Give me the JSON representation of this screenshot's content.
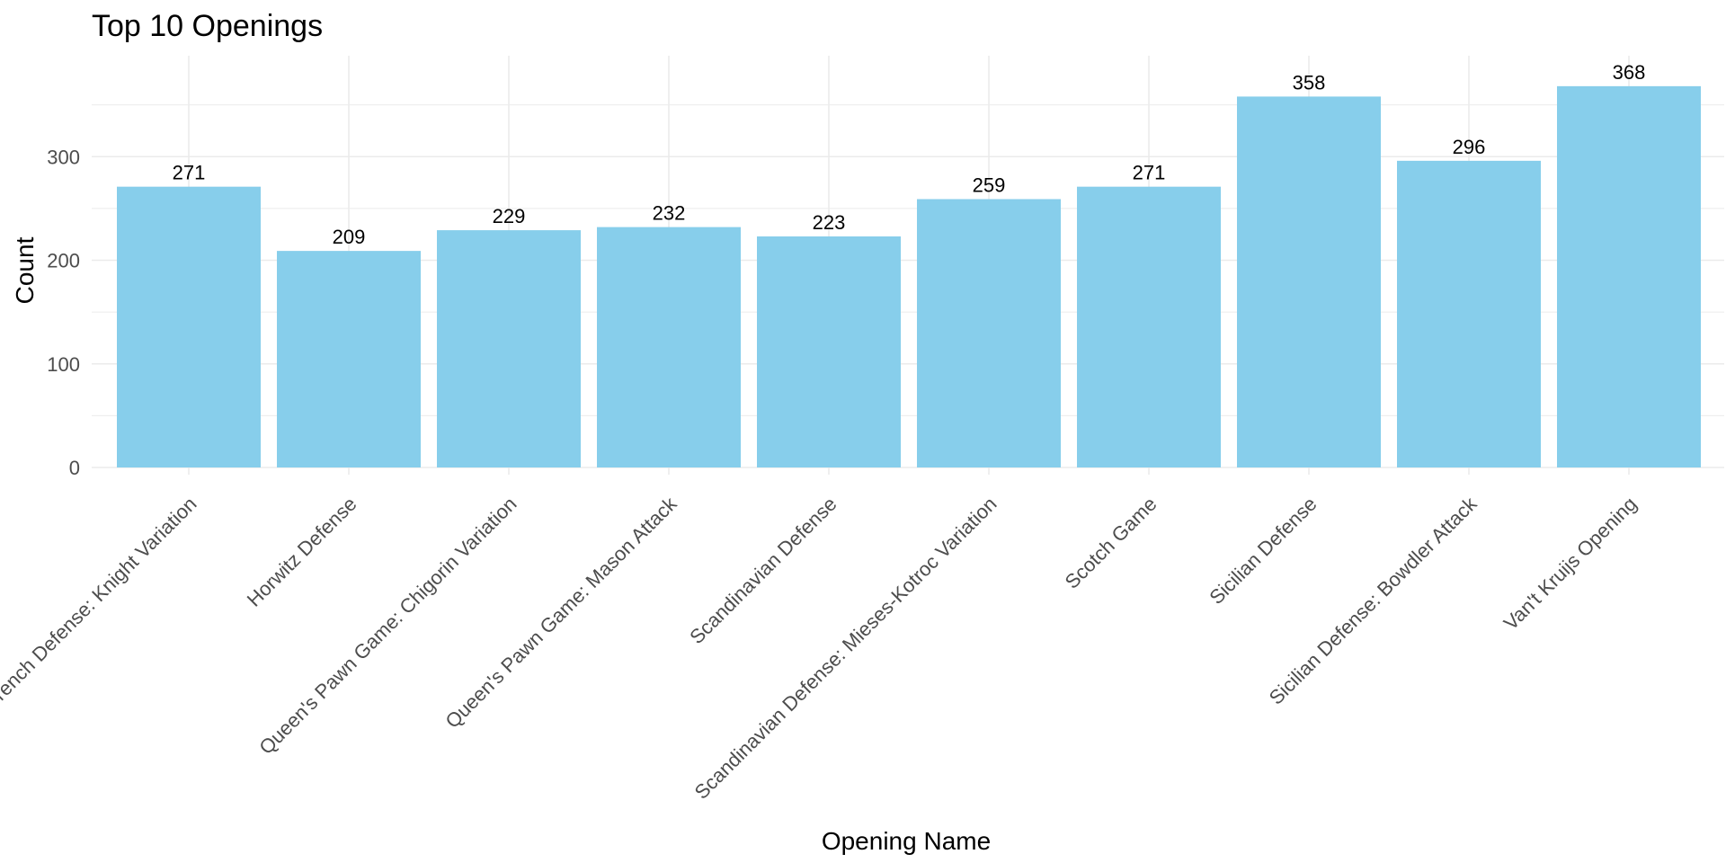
{
  "chart_data": {
    "type": "bar",
    "title": "Top 10 Openings",
    "xlabel": "Opening Name",
    "ylabel": "Count",
    "categories": [
      "French Defense: Knight Variation",
      "Horwitz Defense",
      "Queen's Pawn Game: Chigorin Variation",
      "Queen's Pawn Game: Mason Attack",
      "Scandinavian Defense",
      "Scandinavian Defense: Mieses-Kotroc Variation",
      "Scotch Game",
      "Sicilian Defense",
      "Sicilian Defense: Bowdler Attack",
      "Van't Kruijs Opening"
    ],
    "values": [
      271,
      209,
      229,
      232,
      223,
      259,
      271,
      358,
      296,
      368
    ],
    "data_labels": [
      "271",
      "209",
      "229",
      "232",
      "223",
      "259",
      "271",
      "358",
      "296",
      "368"
    ],
    "ylim": [
      0,
      400
    ],
    "y_ticks": [
      0,
      100,
      200,
      300
    ],
    "y_tick_labels": [
      "0",
      "100",
      "200",
      "300"
    ],
    "grid": true,
    "legend": "none",
    "x_tick_rotation_deg": 45,
    "bar_color": "#87CEEB",
    "gridline_color": "#ebebeb"
  }
}
